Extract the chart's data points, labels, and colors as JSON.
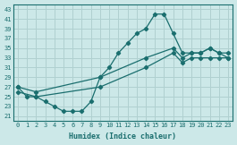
{
  "xlabel": "Humidex (Indice chaleur)",
  "bg_color": "#cce8e8",
  "line_color": "#1a6e6e",
  "grid_color": "#b0d0d0",
  "xlim": [
    -0.5,
    23.5
  ],
  "ylim": [
    20,
    44
  ],
  "xticks": [
    0,
    1,
    2,
    3,
    4,
    5,
    6,
    7,
    8,
    9,
    10,
    11,
    12,
    13,
    14,
    15,
    16,
    17,
    18,
    19,
    20,
    21,
    22,
    23
  ],
  "yticks": [
    21,
    23,
    25,
    27,
    29,
    31,
    33,
    35,
    37,
    39,
    41,
    43
  ],
  "curve1_x": [
    0,
    1,
    2,
    3,
    4,
    5,
    6,
    7,
    8,
    9,
    10,
    11,
    12,
    13,
    14,
    15,
    16,
    17,
    18,
    19,
    20,
    21,
    22,
    23
  ],
  "curve1_y": [
    27,
    25,
    25,
    24,
    23,
    22,
    22,
    22,
    24,
    29,
    31,
    34,
    36,
    38,
    39,
    42,
    42,
    38,
    34,
    34,
    34,
    35,
    34,
    33
  ],
  "curve2_x": [
    0,
    2,
    9,
    14,
    17,
    18,
    19,
    20,
    21,
    22,
    23
  ],
  "curve2_y": [
    27,
    26,
    29,
    33,
    35,
    33,
    34,
    34,
    35,
    34,
    34
  ],
  "curve3_x": [
    0,
    2,
    9,
    14,
    17,
    18,
    19,
    20,
    21,
    22,
    23
  ],
  "curve3_y": [
    26,
    25,
    27,
    31,
    34,
    32,
    33,
    33,
    33,
    33,
    33
  ]
}
